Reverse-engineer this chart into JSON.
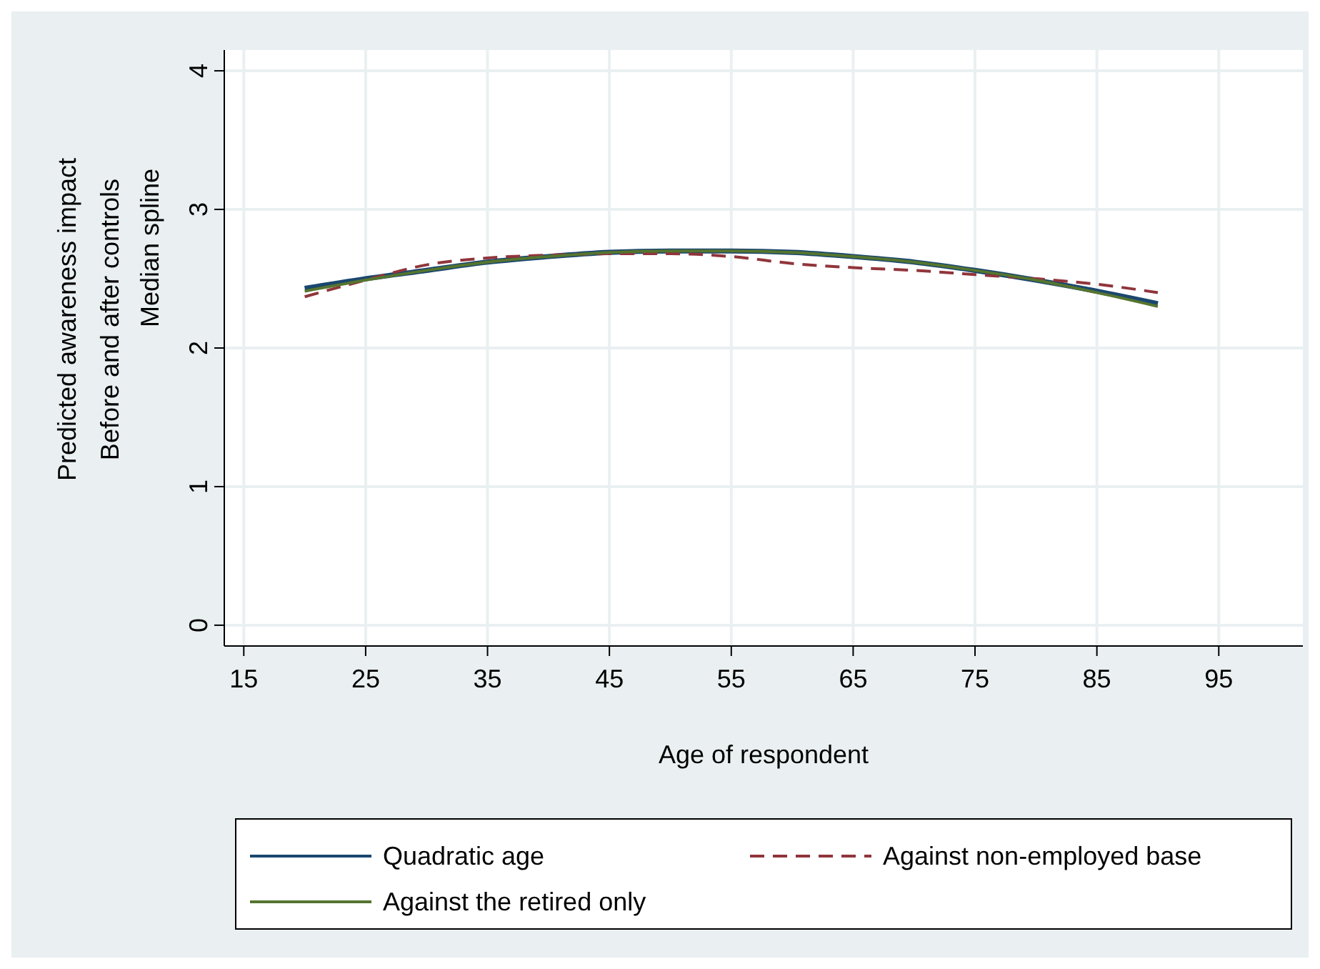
{
  "chart_data": {
    "type": "line",
    "xlabel": "Age of respondent",
    "ylabel": "Predicted awareness impact\nBefore and after controls\nMedian spline",
    "x": [
      20,
      25,
      30,
      35,
      40,
      45,
      50,
      55,
      60,
      65,
      70,
      75,
      80,
      85,
      90
    ],
    "series": [
      {
        "name": "Quadratic age",
        "color": "#1a476f",
        "values": [
          2.43,
          2.5,
          2.56,
          2.62,
          2.66,
          2.69,
          2.7,
          2.7,
          2.69,
          2.66,
          2.62,
          2.56,
          2.49,
          2.41,
          2.32
        ]
      },
      {
        "name": "Against non-employed base",
        "color": "#90353b",
        "line_style": "dashed",
        "values": [
          2.37,
          2.49,
          2.6,
          2.65,
          2.67,
          2.68,
          2.68,
          2.66,
          2.61,
          2.58,
          2.56,
          2.53,
          2.5,
          2.46,
          2.4
        ]
      },
      {
        "name": "Against the retired only",
        "color": "#55752f",
        "values": [
          2.41,
          2.49,
          2.56,
          2.62,
          2.66,
          2.69,
          2.7,
          2.7,
          2.69,
          2.66,
          2.62,
          2.56,
          2.49,
          2.4,
          2.3
        ]
      }
    ],
    "xlim": [
      13.4,
      101.9
    ],
    "ylim": [
      -0.15,
      4.15
    ],
    "xticks": [
      15,
      25,
      35,
      45,
      55,
      65,
      75,
      85,
      95
    ],
    "yticks": [
      0,
      1,
      2,
      3,
      4
    ],
    "grid": true,
    "legend": "bottom",
    "line_style": "solid"
  }
}
